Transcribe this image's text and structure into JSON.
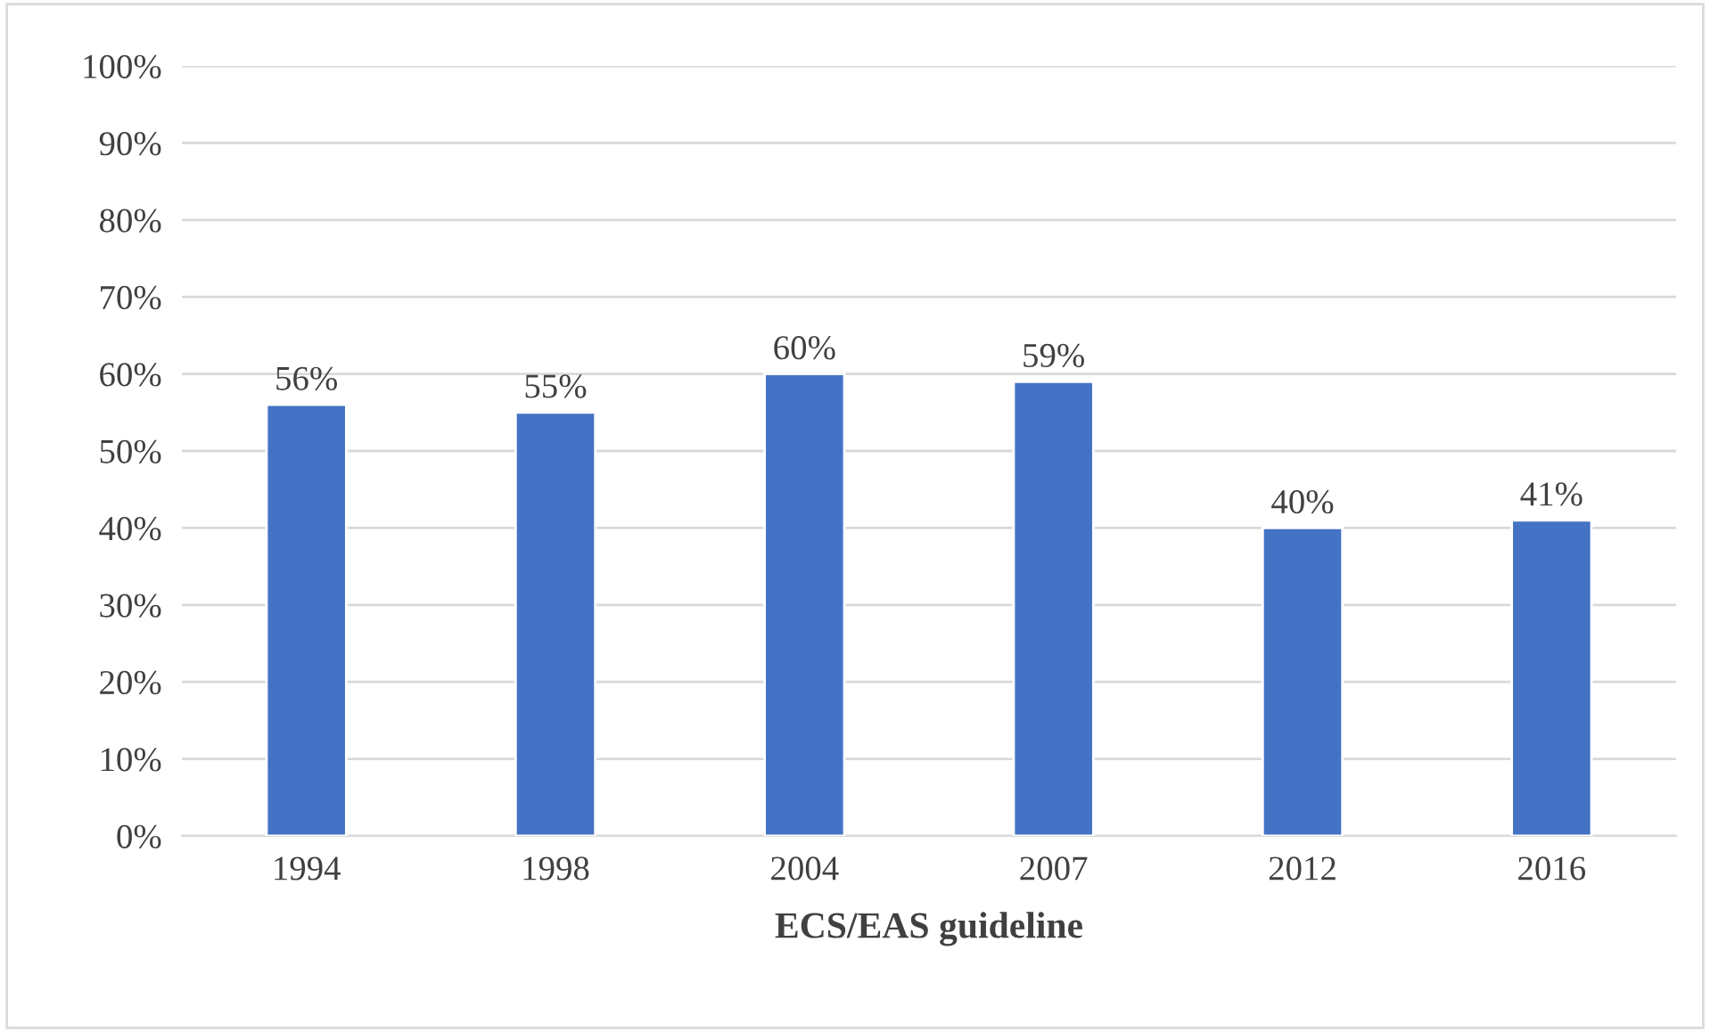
{
  "chart_data": {
    "type": "bar",
    "xlabel": "ECS/EAS guideline",
    "categories": [
      "1994",
      "1998",
      "2004",
      "2007",
      "2012",
      "2016"
    ],
    "values": [
      56,
      55,
      60,
      59,
      40,
      41
    ],
    "value_labels": [
      "56%",
      "55%",
      "60%",
      "59%",
      "40%",
      "41%"
    ],
    "color": "#4472c4",
    "ylim": [
      0,
      100
    ],
    "yticks": [
      {
        "value": 0,
        "label": "0%"
      },
      {
        "value": 10,
        "label": "10%"
      },
      {
        "value": 20,
        "label": "20%"
      },
      {
        "value": 30,
        "label": "30%"
      },
      {
        "value": 40,
        "label": "40%"
      },
      {
        "value": 50,
        "label": "50%"
      },
      {
        "value": 60,
        "label": "60%"
      },
      {
        "value": 70,
        "label": "70%"
      },
      {
        "value": 80,
        "label": "80%"
      },
      {
        "value": 90,
        "label": "90%"
      },
      {
        "value": 100,
        "label": "100%"
      }
    ],
    "grid": "y",
    "legend": false
  }
}
